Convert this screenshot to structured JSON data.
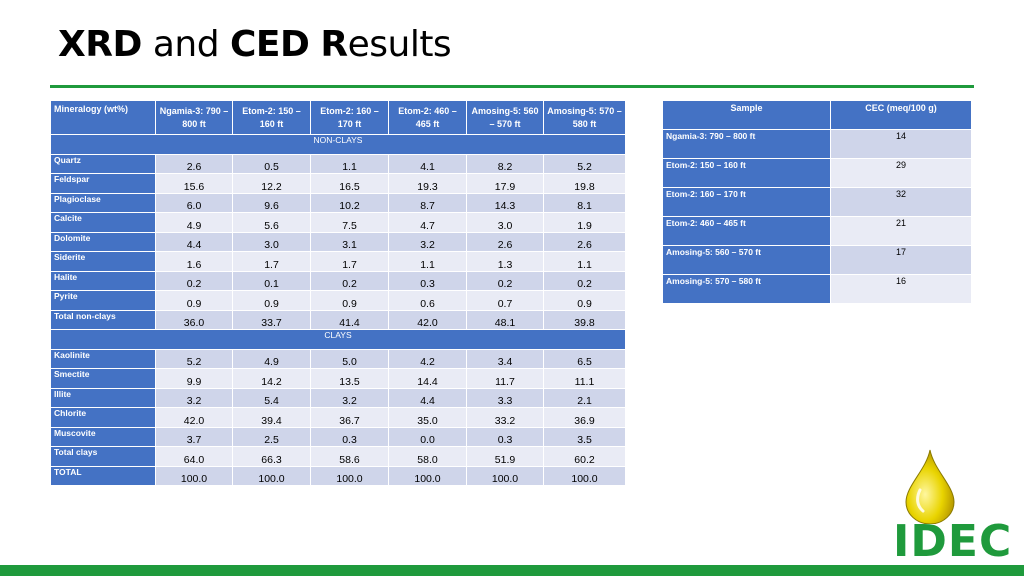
{
  "header": {
    "title_parts": [
      "XRD",
      "and",
      "CED",
      "R",
      "esults"
    ]
  },
  "xrd_table": {
    "columns": [
      "Mineralogy (wt%)",
      "Ngamia-3: 790 – 800 ft",
      "Etom-2: 150 – 160 ft",
      "Etom-2: 160 – 170 ft",
      "Etom-2: 460 – 465 ft",
      "Amosing-5: 560 – 570 ft",
      "Amosing-5: 570 – 580 ft"
    ],
    "sections": [
      {
        "name": "NON-CLAYS",
        "rows": [
          [
            "Quartz",
            "2.6",
            "0.5",
            "1.1",
            "4.1",
            "8.2",
            "5.2"
          ],
          [
            "Feldspar",
            "15.6",
            "12.2",
            "16.5",
            "19.3",
            "17.9",
            "19.8"
          ],
          [
            "Plagioclase",
            "6.0",
            "9.6",
            "10.2",
            "8.7",
            "14.3",
            "8.1"
          ],
          [
            "Calcite",
            "4.9",
            "5.6",
            "7.5",
            "4.7",
            "3.0",
            "1.9"
          ],
          [
            "Dolomite",
            "4.4",
            "3.0",
            "3.1",
            "3.2",
            "2.6",
            "2.6"
          ],
          [
            "Siderite",
            "1.6",
            "1.7",
            "1.7",
            "1.1",
            "1.3",
            "1.1"
          ],
          [
            "Halite",
            "0.2",
            "0.1",
            "0.2",
            "0.3",
            "0.2",
            "0.2"
          ],
          [
            "Pyrite",
            "0.9",
            "0.9",
            "0.9",
            "0.6",
            "0.7",
            "0.9"
          ],
          [
            "Total non-clays",
            "36.0",
            "33.7",
            "41.4",
            "42.0",
            "48.1",
            "39.8"
          ]
        ]
      },
      {
        "name": "CLAYS",
        "rows": [
          [
            "Kaolinite",
            "5.2",
            "4.9",
            "5.0",
            "4.2",
            "3.4",
            "6.5"
          ],
          [
            "Smectite",
            "9.9",
            "14.2",
            "13.5",
            "14.4",
            "11.7",
            "11.1"
          ],
          [
            "Illite",
            "3.2",
            "5.4",
            "3.2",
            "4.4",
            "3.3",
            "2.1"
          ],
          [
            "Chlorite",
            "42.0",
            "39.4",
            "36.7",
            "35.0",
            "33.2",
            "36.9"
          ],
          [
            "Muscovite",
            "3.7",
            "2.5",
            "0.3",
            "0.0",
            "0.3",
            "3.5"
          ],
          [
            "Total clays",
            "64.0",
            "66.3",
            "58.6",
            "58.0",
            "51.9",
            "60.2"
          ],
          [
            "TOTAL",
            "100.0",
            "100.0",
            "100.0",
            "100.0",
            "100.0",
            "100.0"
          ]
        ]
      }
    ]
  },
  "cec_table": {
    "columns": [
      "Sample",
      "CEC (meq/100 g)"
    ],
    "rows": [
      [
        "Ngamia-3: 790 – 800 ft",
        "14"
      ],
      [
        "Etom-2: 150 – 160 ft",
        "29"
      ],
      [
        "Etom-2: 160 – 170 ft",
        "32"
      ],
      [
        "Etom-2: 460 – 465 ft",
        "21"
      ],
      [
        "Amosing-5: 560 – 570 ft",
        "17"
      ],
      [
        "Amosing-5: 570 – 580 ft",
        "16"
      ]
    ]
  },
  "logo": {
    "text": "IDEC"
  }
}
